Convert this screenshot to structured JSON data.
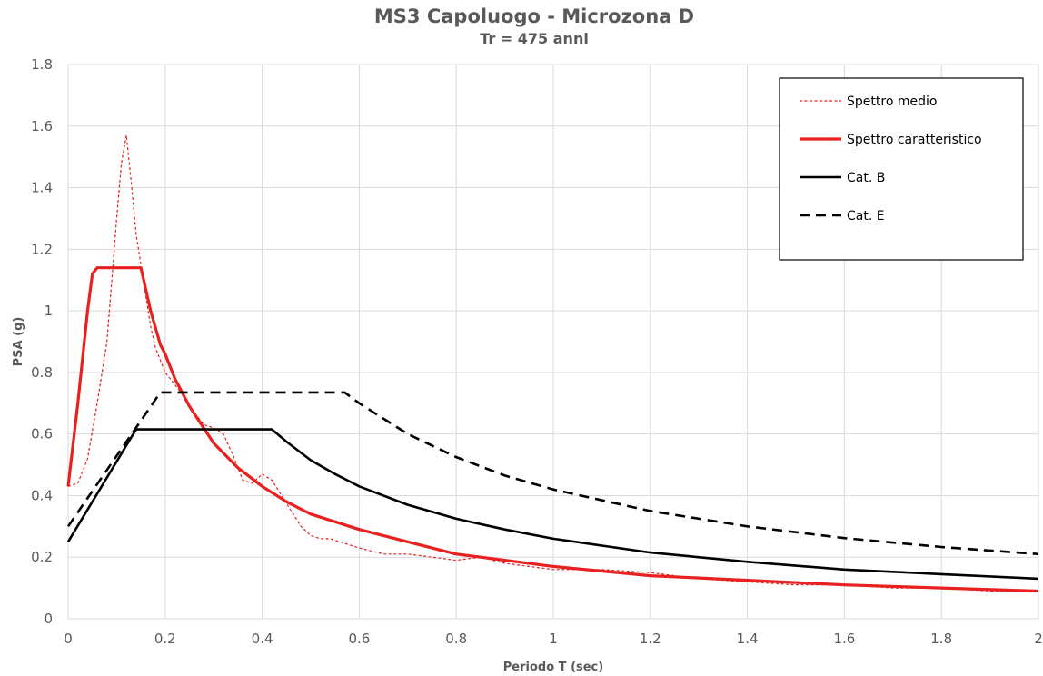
{
  "chart_data": {
    "type": "line",
    "title": "MS3 Capoluogo - Microzona D",
    "subtitle": "Tr = 475 anni",
    "xlabel": "Periodo T (sec)",
    "ylabel": "PSA (g)",
    "xlim": [
      0,
      2
    ],
    "ylim": [
      0,
      1.8
    ],
    "xticks": [
      "0",
      "0.2",
      "0.4",
      "0.6",
      "0.8",
      "1",
      "1.2",
      "1.4",
      "1.6",
      "1.8",
      "2"
    ],
    "yticks": [
      "0",
      "0.2",
      "0.4",
      "0.6",
      "0.8",
      "1",
      "1.2",
      "1.4",
      "1.6",
      "1.8"
    ],
    "grid": true,
    "legend_position": "top-right",
    "series": [
      {
        "name": "Spettro medio",
        "color": "#e8201f",
        "style": "dotted-thin",
        "points": [
          [
            0,
            0.43
          ],
          [
            0.02,
            0.44
          ],
          [
            0.04,
            0.52
          ],
          [
            0.06,
            0.7
          ],
          [
            0.08,
            0.9
          ],
          [
            0.09,
            1.1
          ],
          [
            0.1,
            1.3
          ],
          [
            0.11,
            1.48
          ],
          [
            0.12,
            1.57
          ],
          [
            0.13,
            1.42
          ],
          [
            0.14,
            1.25
          ],
          [
            0.15,
            1.15
          ],
          [
            0.16,
            1.05
          ],
          [
            0.17,
            0.95
          ],
          [
            0.18,
            0.88
          ],
          [
            0.2,
            0.8
          ],
          [
            0.22,
            0.76
          ],
          [
            0.24,
            0.72
          ],
          [
            0.26,
            0.67
          ],
          [
            0.28,
            0.63
          ],
          [
            0.3,
            0.62
          ],
          [
            0.32,
            0.6
          ],
          [
            0.34,
            0.53
          ],
          [
            0.36,
            0.45
          ],
          [
            0.38,
            0.44
          ],
          [
            0.4,
            0.47
          ],
          [
            0.42,
            0.45
          ],
          [
            0.44,
            0.4
          ],
          [
            0.46,
            0.35
          ],
          [
            0.48,
            0.3
          ],
          [
            0.5,
            0.27
          ],
          [
            0.52,
            0.26
          ],
          [
            0.54,
            0.26
          ],
          [
            0.56,
            0.25
          ],
          [
            0.6,
            0.23
          ],
          [
            0.65,
            0.21
          ],
          [
            0.7,
            0.21
          ],
          [
            0.75,
            0.2
          ],
          [
            0.8,
            0.19
          ],
          [
            0.85,
            0.2
          ],
          [
            0.9,
            0.18
          ],
          [
            1.0,
            0.16
          ],
          [
            1.1,
            0.16
          ],
          [
            1.2,
            0.15
          ],
          [
            1.3,
            0.13
          ],
          [
            1.4,
            0.12
          ],
          [
            1.5,
            0.11
          ],
          [
            1.6,
            0.11
          ],
          [
            1.7,
            0.1
          ],
          [
            1.8,
            0.1
          ],
          [
            1.9,
            0.09
          ],
          [
            2.0,
            0.09
          ]
        ]
      },
      {
        "name": "Spettro caratteristico",
        "color": "#e8201f",
        "style": "solid-thick",
        "points": [
          [
            0,
            0.43
          ],
          [
            0.02,
            0.7
          ],
          [
            0.04,
            1.0
          ],
          [
            0.05,
            1.12
          ],
          [
            0.06,
            1.14
          ],
          [
            0.15,
            1.14
          ],
          [
            0.17,
            1.0
          ],
          [
            0.19,
            0.89
          ],
          [
            0.2,
            0.86
          ],
          [
            0.22,
            0.78
          ],
          [
            0.25,
            0.69
          ],
          [
            0.3,
            0.57
          ],
          [
            0.35,
            0.49
          ],
          [
            0.4,
            0.43
          ],
          [
            0.45,
            0.38
          ],
          [
            0.5,
            0.34
          ],
          [
            0.6,
            0.29
          ],
          [
            0.7,
            0.25
          ],
          [
            0.8,
            0.21
          ],
          [
            0.9,
            0.19
          ],
          [
            1.0,
            0.17
          ],
          [
            1.2,
            0.14
          ],
          [
            1.4,
            0.125
          ],
          [
            1.6,
            0.11
          ],
          [
            1.8,
            0.1
          ],
          [
            2.0,
            0.09
          ]
        ]
      },
      {
        "name": "Cat. B",
        "color": "#000000",
        "style": "solid",
        "points": [
          [
            0,
            0.25
          ],
          [
            0.14,
            0.615
          ],
          [
            0.42,
            0.615
          ],
          [
            0.45,
            0.575
          ],
          [
            0.5,
            0.515
          ],
          [
            0.55,
            0.47
          ],
          [
            0.6,
            0.43
          ],
          [
            0.7,
            0.37
          ],
          [
            0.8,
            0.325
          ],
          [
            0.9,
            0.29
          ],
          [
            1.0,
            0.26
          ],
          [
            1.2,
            0.215
          ],
          [
            1.4,
            0.185
          ],
          [
            1.6,
            0.16
          ],
          [
            1.8,
            0.145
          ],
          [
            2.0,
            0.13
          ]
        ]
      },
      {
        "name": "Cat. E",
        "color": "#000000",
        "style": "dashed",
        "points": [
          [
            0,
            0.3
          ],
          [
            0.19,
            0.735
          ],
          [
            0.57,
            0.735
          ],
          [
            0.6,
            0.7
          ],
          [
            0.7,
            0.6
          ],
          [
            0.8,
            0.525
          ],
          [
            0.9,
            0.465
          ],
          [
            1.0,
            0.42
          ],
          [
            1.2,
            0.35
          ],
          [
            1.4,
            0.3
          ],
          [
            1.6,
            0.262
          ],
          [
            1.8,
            0.233
          ],
          [
            2.0,
            0.21
          ]
        ]
      }
    ]
  }
}
